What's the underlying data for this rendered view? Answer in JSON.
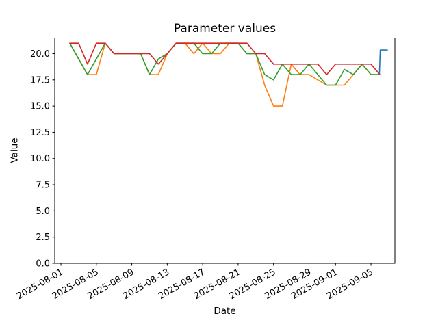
{
  "title": "Parameter values",
  "xlabel": "Date",
  "ylabel": "Value",
  "colors": {
    "blue": "#1f77b4",
    "orange": "#ff7f0e",
    "green": "#2ca02c",
    "red": "#d62728",
    "axis": "#000000",
    "background": "#ffffff"
  },
  "chart_data": {
    "type": "line",
    "grid": false,
    "legend": null,
    "x_unit": "days_since_2025-08-01",
    "xlim_days": [
      -0.7,
      37.7
    ],
    "ylim": [
      0,
      21.5
    ],
    "yticks": [
      0,
      2.5,
      5,
      7.5,
      10,
      12.5,
      15,
      17.5,
      20
    ],
    "xticks": [
      {
        "label": "2025-08-01",
        "day": 0
      },
      {
        "label": "2025-08-05",
        "day": 4
      },
      {
        "label": "2025-08-09",
        "day": 8
      },
      {
        "label": "2025-08-13",
        "day": 12
      },
      {
        "label": "2025-08-17",
        "day": 16
      },
      {
        "label": "2025-08-21",
        "day": 20
      },
      {
        "label": "2025-08-25",
        "day": 24
      },
      {
        "label": "2025-08-29",
        "day": 28
      },
      {
        "label": "2025-09-01",
        "day": 31
      },
      {
        "label": "2025-09-05",
        "day": 35
      }
    ],
    "series": [
      {
        "name": "orange",
        "color": "#ff7f0e",
        "x": [
          1,
          2,
          3,
          4,
          5,
          6,
          7,
          8,
          9,
          10,
          11,
          12,
          13,
          14,
          15,
          16,
          17,
          18,
          19,
          20,
          21,
          22,
          23,
          24,
          25,
          26,
          27,
          28,
          29,
          30,
          31,
          32,
          33,
          34,
          35,
          36
        ],
        "values": [
          21,
          19.5,
          18,
          18,
          21,
          20,
          20,
          20,
          20,
          18,
          18,
          20,
          21,
          21,
          20,
          21,
          20,
          20,
          21,
          21,
          20,
          20,
          17,
          15,
          15,
          19,
          18,
          18,
          17.5,
          17,
          17,
          17,
          18,
          19,
          18,
          18
        ]
      },
      {
        "name": "green",
        "color": "#2ca02c",
        "x": [
          1,
          2,
          3,
          4,
          5,
          6,
          7,
          8,
          9,
          10,
          11,
          12,
          13,
          14,
          15,
          16,
          17,
          18,
          19,
          20,
          21,
          22,
          23,
          24,
          25,
          26,
          27,
          28,
          29,
          30,
          31,
          32,
          33,
          34,
          35,
          36
        ],
        "values": [
          21,
          19.5,
          18,
          19.5,
          21,
          20,
          20,
          20,
          20,
          18,
          19.5,
          20,
          21,
          21,
          21,
          20,
          20,
          21,
          21,
          21,
          20,
          20,
          18,
          17.5,
          19,
          18,
          18,
          19,
          18,
          17,
          17,
          18.5,
          18,
          19,
          18,
          18
        ]
      },
      {
        "name": "red",
        "color": "#d62728",
        "x": [
          1,
          2,
          3,
          4,
          5,
          6,
          7,
          8,
          9,
          10,
          11,
          12,
          13,
          14,
          15,
          16,
          17,
          18,
          19,
          20,
          21,
          22,
          23,
          24,
          25,
          26,
          27,
          28,
          29,
          30,
          31,
          32,
          33,
          34,
          35,
          36
        ],
        "values": [
          21,
          21,
          19,
          21,
          21,
          20,
          20,
          20,
          20,
          20,
          19,
          20,
          21,
          21,
          21,
          21,
          21,
          21,
          21,
          21,
          21,
          20,
          20,
          19,
          19,
          19,
          19,
          19,
          19,
          18,
          19,
          19,
          19,
          19,
          19,
          18
        ]
      },
      {
        "name": "blue",
        "color": "#1f77b4",
        "x": [
          35.95,
          36.05,
          36.85
        ],
        "values": [
          18.1,
          20.35,
          20.35
        ]
      }
    ]
  }
}
